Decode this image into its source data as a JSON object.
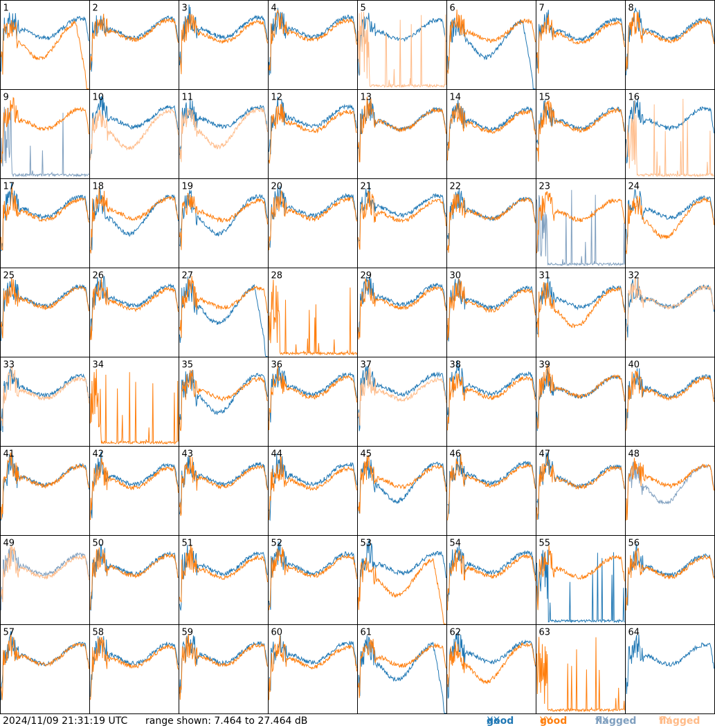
{
  "chart_data": {
    "type": "line",
    "description_grid": "8x8 small-multiples of antenna spectra",
    "panels": [
      "1",
      "2",
      "3",
      "4",
      "5",
      "6",
      "7",
      "8",
      "9",
      "10",
      "11",
      "12",
      "13",
      "14",
      "15",
      "16",
      "17",
      "18",
      "19",
      "20",
      "21",
      "22",
      "23",
      "24",
      "25",
      "26",
      "27",
      "28",
      "29",
      "30",
      "31",
      "32",
      "33",
      "34",
      "35",
      "36",
      "37",
      "38",
      "39",
      "40",
      "41",
      "42",
      "43",
      "44",
      "45",
      "46",
      "47",
      "48",
      "49",
      "50",
      "51",
      "52",
      "53",
      "54",
      "55",
      "56",
      "57",
      "58",
      "59",
      "60",
      "61",
      "62",
      "63",
      "64"
    ],
    "range_db": [
      7.464,
      27.464
    ],
    "panel_status": {
      "xx_flagged": [
        9,
        23,
        48,
        49
      ],
      "yy_flagged": [
        5,
        10,
        11,
        16,
        32,
        33,
        37,
        49
      ],
      "xx_missing": [
        28,
        34,
        63
      ],
      "yy_missing": [
        64
      ],
      "xx_spiky": [
        9,
        23,
        55
      ],
      "yy_spiky": [
        5,
        16,
        28,
        34,
        63
      ],
      "xx_drop_end": [
        6,
        27,
        61
      ],
      "yy_drop_end": [
        1,
        53
      ],
      "xx_low_dip": [
        6,
        18,
        19,
        27,
        35,
        45,
        48,
        61
      ],
      "yy_low_dip": [
        1,
        10,
        11,
        24,
        31,
        53,
        62
      ]
    },
    "series": [
      {
        "name": "good XX",
        "color": "#1f77b4"
      },
      {
        "name": "good YY",
        "color": "#ff7f0e"
      },
      {
        "name": "flagged XX",
        "color": "#7f9fbf"
      },
      {
        "name": "flagged YY",
        "color": "#ffbb88"
      }
    ]
  },
  "footer": {
    "timestamp": "2024/11/09 21:31:19 UTC",
    "range_text": "range shown: 7.464 to 27.464 dB",
    "legend": [
      {
        "word": "good",
        "key": "XX"
      },
      {
        "word": "good",
        "key": "YY"
      },
      {
        "word": "flagged",
        "key": "XX"
      },
      {
        "word": "flagged",
        "key": "YY"
      }
    ]
  },
  "colors": {
    "good_xx": "#1f77b4",
    "good_yy": "#ff7f0e",
    "flagged_xx": "#7f9fbf",
    "flagged_yy": "#ffbb88"
  }
}
